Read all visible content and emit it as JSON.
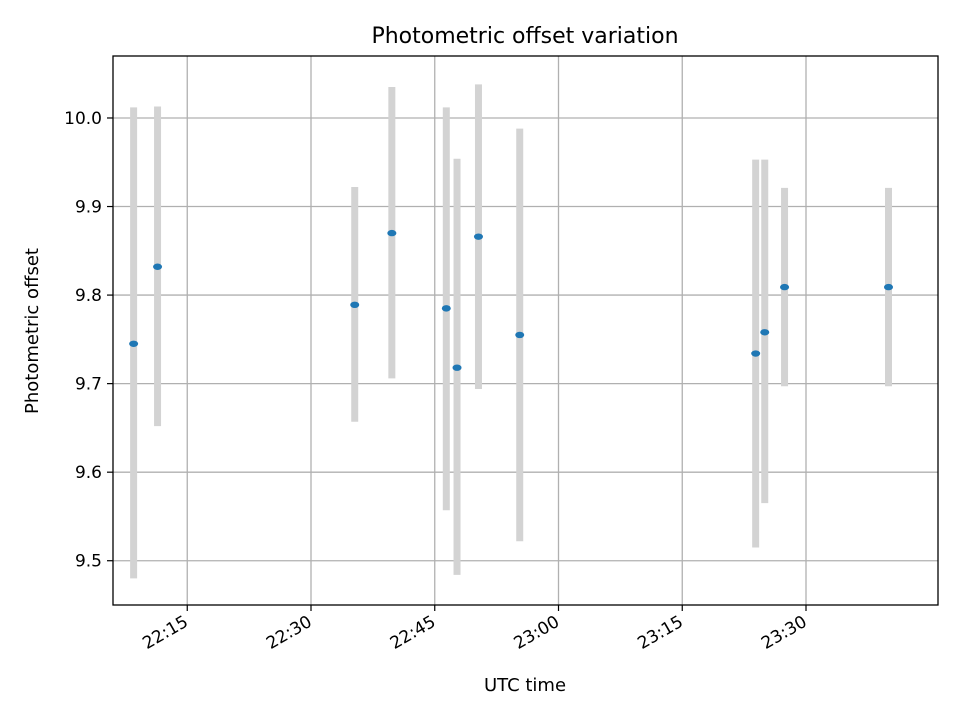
{
  "chart_data": {
    "type": "scatter",
    "title": "Photometric offset variation",
    "xlabel": "UTC time",
    "ylabel": "Photometric offset",
    "x_unit": "UTC time of day (HH:MM)",
    "xlim": [
      "22:06",
      "23:46"
    ],
    "ylim": [
      9.45,
      10.07
    ],
    "x_ticks": [
      "22:15",
      "22:30",
      "22:45",
      "23:00",
      "23:15",
      "23:30"
    ],
    "y_ticks": [
      "9.5",
      "9.6",
      "9.7",
      "9.8",
      "9.9",
      "10.0"
    ],
    "grid": true,
    "marker_color": "#1f77b4",
    "errorbar_color": "#d3d3d3",
    "points": [
      {
        "x": "22:08:30",
        "y": 9.745,
        "ylow": 9.48,
        "yhigh": 10.012
      },
      {
        "x": "22:11:24",
        "y": 9.832,
        "ylow": 9.652,
        "yhigh": 10.013
      },
      {
        "x": "22:35:18",
        "y": 9.789,
        "ylow": 9.657,
        "yhigh": 9.922
      },
      {
        "x": "22:39:48",
        "y": 9.87,
        "ylow": 9.706,
        "yhigh": 10.035
      },
      {
        "x": "22:46:24",
        "y": 9.785,
        "ylow": 9.557,
        "yhigh": 10.012
      },
      {
        "x": "22:47:42",
        "y": 9.718,
        "ylow": 9.484,
        "yhigh": 9.954
      },
      {
        "x": "22:50:18",
        "y": 9.866,
        "ylow": 9.694,
        "yhigh": 10.038
      },
      {
        "x": "22:55:18",
        "y": 9.755,
        "ylow": 9.522,
        "yhigh": 9.988
      },
      {
        "x": "23:23:54",
        "y": 9.734,
        "ylow": 9.515,
        "yhigh": 9.953
      },
      {
        "x": "23:25:00",
        "y": 9.758,
        "ylow": 9.565,
        "yhigh": 9.953
      },
      {
        "x": "23:27:24",
        "y": 9.809,
        "ylow": 9.697,
        "yhigh": 9.921
      },
      {
        "x": "23:40:00",
        "y": 9.809,
        "ylow": 9.697,
        "yhigh": 9.921
      }
    ]
  }
}
